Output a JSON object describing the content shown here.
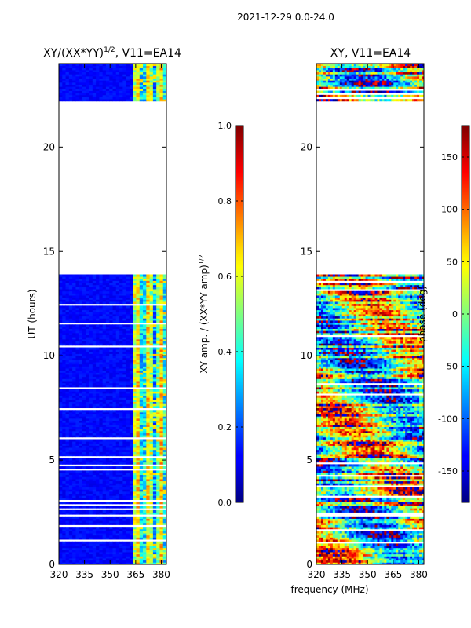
{
  "suptitle": "2021-12-29 0.0-24.0",
  "chart_data": [
    {
      "type": "heatmap",
      "title_main": "XY/(XX*YY)",
      "title_exp": "1/2",
      "title_tail": ", V11=EA14",
      "xlabel": "",
      "ylabel": "UT (hours)",
      "xlim": [
        320,
        383
      ],
      "ylim": [
        0,
        24
      ],
      "xticks": [
        320,
        335,
        350,
        365,
        380
      ],
      "yticks": [
        0,
        5,
        10,
        15,
        20
      ],
      "data_time_ranges_hours": [
        [
          0,
          13.9
        ],
        [
          22.2,
          24
        ]
      ],
      "high_amplitude_band_mhz": [
        363,
        382
      ],
      "colorbar": {
        "label_main": "XY amp. / (XX*YY amp)",
        "label_exp": "1/2",
        "range": [
          0.0,
          1.0
        ],
        "ticks": [
          "0.0",
          "0.2",
          "0.4",
          "0.6",
          "0.8",
          "1.0"
        ]
      }
    },
    {
      "type": "heatmap",
      "title": "XY, V11=EA14",
      "xlabel": "frequency (MHz)",
      "ylabel": "",
      "xlim": [
        320,
        383
      ],
      "ylim": [
        0,
        24
      ],
      "xticks": [
        320,
        335,
        350,
        365,
        380
      ],
      "yticks": [
        0,
        5,
        10,
        15,
        20
      ],
      "data_time_ranges_hours": [
        [
          0,
          13.9
        ],
        [
          22.2,
          24
        ]
      ],
      "colorbar": {
        "label": "phase (deg)",
        "range": [
          -180,
          180
        ],
        "ticks": [
          -150,
          -100,
          -50,
          0,
          50,
          100,
          150
        ]
      }
    }
  ]
}
